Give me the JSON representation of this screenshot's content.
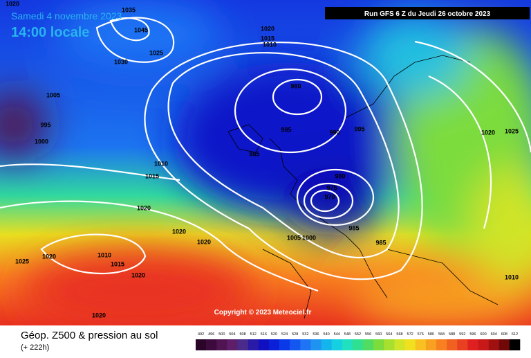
{
  "header": {
    "date": "Samedi 4 novembre 2023",
    "time": "14:00 locale",
    "run": "Run GFS 6 Z du Jeudi 26 octobre 2023"
  },
  "copyright": "Copyright © 2023 Meteociel.fr",
  "footer": {
    "title": "Géop. Z500 & pression au sol",
    "lead": "(+ 222h)"
  },
  "isobar_labels": [
    1020,
    1035,
    1045,
    1025,
    1030,
    1020,
    1015,
    1010,
    1005,
    995,
    1000,
    980,
    985,
    990,
    995,
    985,
    1010,
    1015,
    980,
    975,
    970,
    985,
    985,
    1005,
    1000,
    1020,
    1020,
    1020,
    1025,
    1020,
    1010,
    1015,
    1020,
    1020,
    1020,
    1025,
    1010
  ],
  "colorbar": {
    "ticks": [
      492,
      496,
      500,
      504,
      508,
      512,
      516,
      520,
      524,
      528,
      532,
      536,
      540,
      544,
      548,
      552,
      556,
      560,
      564,
      568,
      572,
      576,
      580,
      584,
      588,
      592,
      596,
      600,
      604,
      608,
      612
    ],
    "colors": [
      "#2a0528",
      "#3d0a3d",
      "#501452",
      "#5e1e6a",
      "#4a2a8a",
      "#2a1aa8",
      "#1010c0",
      "#0a20d8",
      "#0a3ae8",
      "#1456f0",
      "#1e74f4",
      "#1e94f0",
      "#14b4ec",
      "#14d0e0",
      "#20e0c0",
      "#30e090",
      "#50dc60",
      "#7cdc3c",
      "#a8e030",
      "#d0e428",
      "#f0e020",
      "#f8c020",
      "#f8a020",
      "#f88020",
      "#f06020",
      "#e84020",
      "#e02020",
      "#c81818",
      "#a01010",
      "#700808",
      "#000000"
    ]
  }
}
